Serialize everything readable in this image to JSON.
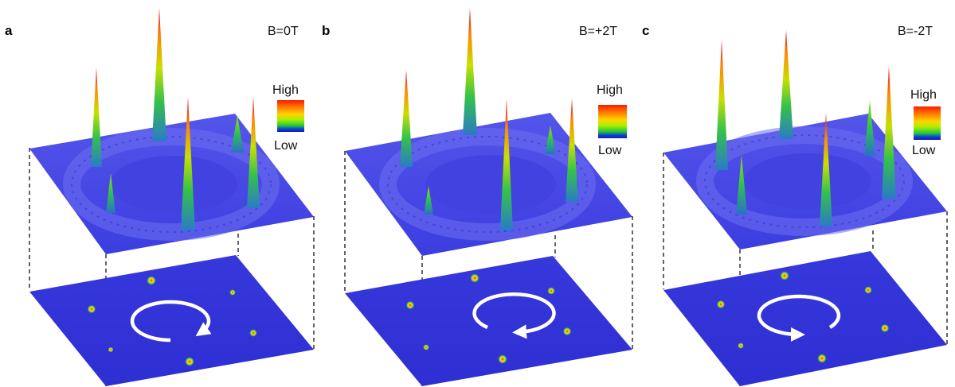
{
  "figure": {
    "colors": {
      "plane_top": "#4a4be6",
      "plane_bottom": "#2f2fd6",
      "plane_mid": "#3a3adf",
      "ring": "#6a6cf0",
      "arrow": "#ffffff",
      "dash": "#111111"
    },
    "colorbar_stops": [
      "#ff1a00",
      "#ff7a00",
      "#ffd400",
      "#a8ef00",
      "#22c83c",
      "#0a38d8",
      "#1a1ab8"
    ],
    "panels": [
      {
        "letter": "a",
        "field_label": "B=0T",
        "legend_high": "High",
        "legend_low": "Low",
        "rotation": "clockwise"
      },
      {
        "letter": "b",
        "field_label": "B=+2T",
        "legend_high": "High",
        "legend_low": "Low",
        "rotation": "clockwise"
      },
      {
        "letter": "c",
        "field_label": "B=-2T",
        "legend_high": "High",
        "legend_low": "Low",
        "rotation": "counterclockwise"
      }
    ]
  }
}
